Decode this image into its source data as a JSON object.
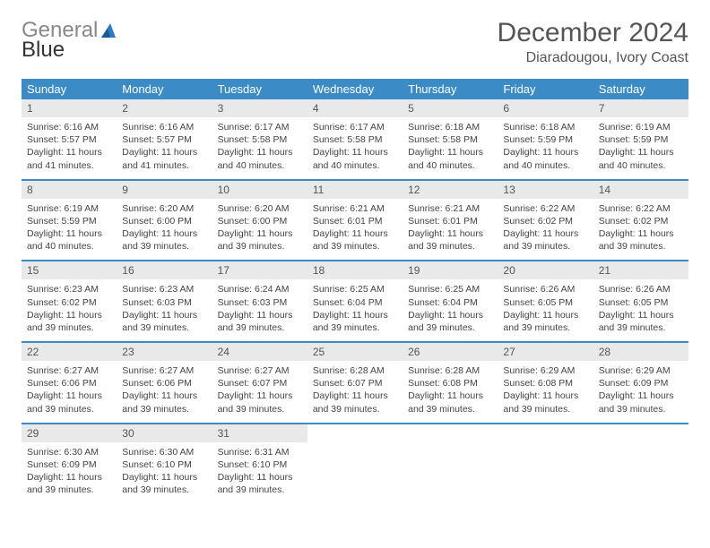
{
  "logo": {
    "word1": "General",
    "word2": "Blue"
  },
  "title": "December 2024",
  "location": "Diaradougou, Ivory Coast",
  "colors": {
    "header_bg": "#3b8bc6",
    "header_fg": "#ffffff",
    "daynum_bg": "#e9e9e9",
    "row_divider": "#3b8bc6",
    "logo_accent": "#2d7cc0",
    "text": "#444444",
    "title_color": "#555555"
  },
  "typography": {
    "title_fontsize": 30,
    "location_fontsize": 16,
    "header_fontsize": 13,
    "daynum_fontsize": 12,
    "body_fontsize": 10.5
  },
  "weekdays": [
    "Sunday",
    "Monday",
    "Tuesday",
    "Wednesday",
    "Thursday",
    "Friday",
    "Saturday"
  ],
  "days": [
    {
      "n": 1,
      "sunrise": "6:16 AM",
      "sunset": "5:57 PM",
      "daylight": "11 hours and 41 minutes."
    },
    {
      "n": 2,
      "sunrise": "6:16 AM",
      "sunset": "5:57 PM",
      "daylight": "11 hours and 41 minutes."
    },
    {
      "n": 3,
      "sunrise": "6:17 AM",
      "sunset": "5:58 PM",
      "daylight": "11 hours and 40 minutes."
    },
    {
      "n": 4,
      "sunrise": "6:17 AM",
      "sunset": "5:58 PM",
      "daylight": "11 hours and 40 minutes."
    },
    {
      "n": 5,
      "sunrise": "6:18 AM",
      "sunset": "5:58 PM",
      "daylight": "11 hours and 40 minutes."
    },
    {
      "n": 6,
      "sunrise": "6:18 AM",
      "sunset": "5:59 PM",
      "daylight": "11 hours and 40 minutes."
    },
    {
      "n": 7,
      "sunrise": "6:19 AM",
      "sunset": "5:59 PM",
      "daylight": "11 hours and 40 minutes."
    },
    {
      "n": 8,
      "sunrise": "6:19 AM",
      "sunset": "5:59 PM",
      "daylight": "11 hours and 40 minutes."
    },
    {
      "n": 9,
      "sunrise": "6:20 AM",
      "sunset": "6:00 PM",
      "daylight": "11 hours and 39 minutes."
    },
    {
      "n": 10,
      "sunrise": "6:20 AM",
      "sunset": "6:00 PM",
      "daylight": "11 hours and 39 minutes."
    },
    {
      "n": 11,
      "sunrise": "6:21 AM",
      "sunset": "6:01 PM",
      "daylight": "11 hours and 39 minutes."
    },
    {
      "n": 12,
      "sunrise": "6:21 AM",
      "sunset": "6:01 PM",
      "daylight": "11 hours and 39 minutes."
    },
    {
      "n": 13,
      "sunrise": "6:22 AM",
      "sunset": "6:02 PM",
      "daylight": "11 hours and 39 minutes."
    },
    {
      "n": 14,
      "sunrise": "6:22 AM",
      "sunset": "6:02 PM",
      "daylight": "11 hours and 39 minutes."
    },
    {
      "n": 15,
      "sunrise": "6:23 AM",
      "sunset": "6:02 PM",
      "daylight": "11 hours and 39 minutes."
    },
    {
      "n": 16,
      "sunrise": "6:23 AM",
      "sunset": "6:03 PM",
      "daylight": "11 hours and 39 minutes."
    },
    {
      "n": 17,
      "sunrise": "6:24 AM",
      "sunset": "6:03 PM",
      "daylight": "11 hours and 39 minutes."
    },
    {
      "n": 18,
      "sunrise": "6:25 AM",
      "sunset": "6:04 PM",
      "daylight": "11 hours and 39 minutes."
    },
    {
      "n": 19,
      "sunrise": "6:25 AM",
      "sunset": "6:04 PM",
      "daylight": "11 hours and 39 minutes."
    },
    {
      "n": 20,
      "sunrise": "6:26 AM",
      "sunset": "6:05 PM",
      "daylight": "11 hours and 39 minutes."
    },
    {
      "n": 21,
      "sunrise": "6:26 AM",
      "sunset": "6:05 PM",
      "daylight": "11 hours and 39 minutes."
    },
    {
      "n": 22,
      "sunrise": "6:27 AM",
      "sunset": "6:06 PM",
      "daylight": "11 hours and 39 minutes."
    },
    {
      "n": 23,
      "sunrise": "6:27 AM",
      "sunset": "6:06 PM",
      "daylight": "11 hours and 39 minutes."
    },
    {
      "n": 24,
      "sunrise": "6:27 AM",
      "sunset": "6:07 PM",
      "daylight": "11 hours and 39 minutes."
    },
    {
      "n": 25,
      "sunrise": "6:28 AM",
      "sunset": "6:07 PM",
      "daylight": "11 hours and 39 minutes."
    },
    {
      "n": 26,
      "sunrise": "6:28 AM",
      "sunset": "6:08 PM",
      "daylight": "11 hours and 39 minutes."
    },
    {
      "n": 27,
      "sunrise": "6:29 AM",
      "sunset": "6:08 PM",
      "daylight": "11 hours and 39 minutes."
    },
    {
      "n": 28,
      "sunrise": "6:29 AM",
      "sunset": "6:09 PM",
      "daylight": "11 hours and 39 minutes."
    },
    {
      "n": 29,
      "sunrise": "6:30 AM",
      "sunset": "6:09 PM",
      "daylight": "11 hours and 39 minutes."
    },
    {
      "n": 30,
      "sunrise": "6:30 AM",
      "sunset": "6:10 PM",
      "daylight": "11 hours and 39 minutes."
    },
    {
      "n": 31,
      "sunrise": "6:31 AM",
      "sunset": "6:10 PM",
      "daylight": "11 hours and 39 minutes."
    }
  ],
  "labels": {
    "sunrise_prefix": "Sunrise: ",
    "sunset_prefix": "Sunset: ",
    "daylight_prefix": "Daylight: "
  }
}
